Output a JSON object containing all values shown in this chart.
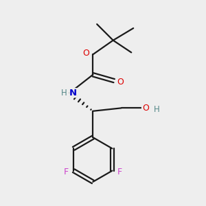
{
  "background_color": "#eeeeee",
  "bond_color": "#1a1a1a",
  "atom_colors": {
    "O": "#dd0000",
    "N": "#0000cc",
    "F": "#cc44cc",
    "H": "#558888",
    "C": "#1a1a1a"
  },
  "figsize": [
    3.0,
    3.0
  ],
  "dpi": 100
}
